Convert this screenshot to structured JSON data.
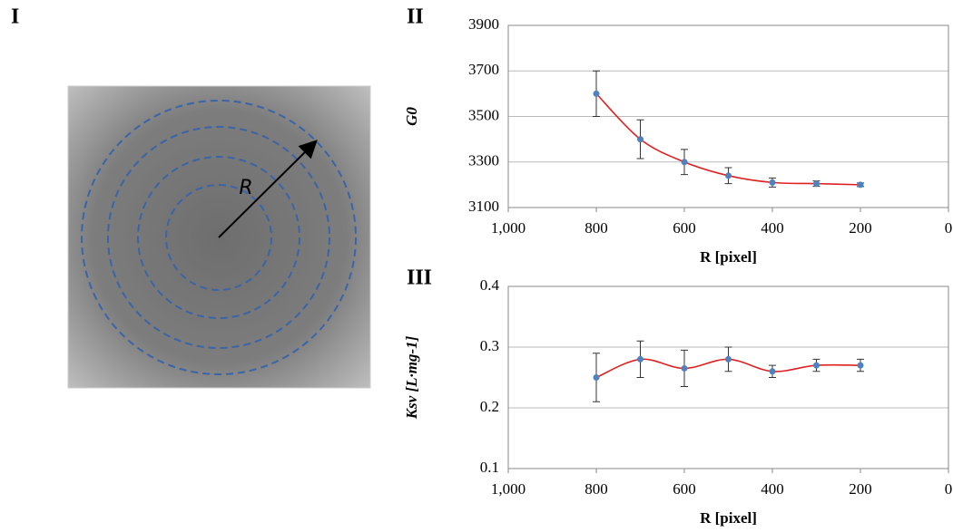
{
  "figure": {
    "panel_label": "I",
    "annotation": "R"
  },
  "chart_data": [
    {
      "type": "line",
      "panel_label": "II",
      "ylabel": "G0",
      "xlabel": "R [pixel]",
      "x": [
        800,
        700,
        600,
        500,
        400,
        300,
        200
      ],
      "series": [
        {
          "color": "#4f81bd",
          "line_color": "#e02020",
          "values": [
            3600,
            3400,
            3300,
            3240,
            3210,
            3205,
            3200
          ],
          "errors": [
            100,
            85,
            55,
            35,
            20,
            12,
            8
          ]
        }
      ],
      "xlim": [
        1000,
        0
      ],
      "xticks": [
        {
          "value": 1000,
          "label": "1,000"
        },
        800,
        600,
        400,
        200,
        0
      ],
      "ylim": [
        3100,
        3900
      ],
      "yticks": [
        3100,
        3300,
        3500,
        3700,
        3900
      ],
      "grid": true
    },
    {
      "type": "line",
      "panel_label": "III",
      "ylabel": "Ksv [L·mg-1]",
      "xlabel": "R [pixel]",
      "x": [
        800,
        700,
        600,
        500,
        400,
        300,
        200
      ],
      "series": [
        {
          "color": "#4f81bd",
          "line_color": "#e02020",
          "values": [
            0.25,
            0.28,
            0.265,
            0.28,
            0.26,
            0.27,
            0.27
          ],
          "errors": [
            0.04,
            0.03,
            0.03,
            0.02,
            0.01,
            0.01,
            0.01
          ]
        }
      ],
      "xlim": [
        1000,
        0
      ],
      "xticks": [
        {
          "value": 1000,
          "label": "1,000"
        },
        800,
        600,
        400,
        200,
        0
      ],
      "ylim": [
        0.1,
        0.4
      ],
      "yticks": [
        0.1,
        0.2,
        0.3,
        0.4
      ],
      "grid": true
    }
  ]
}
